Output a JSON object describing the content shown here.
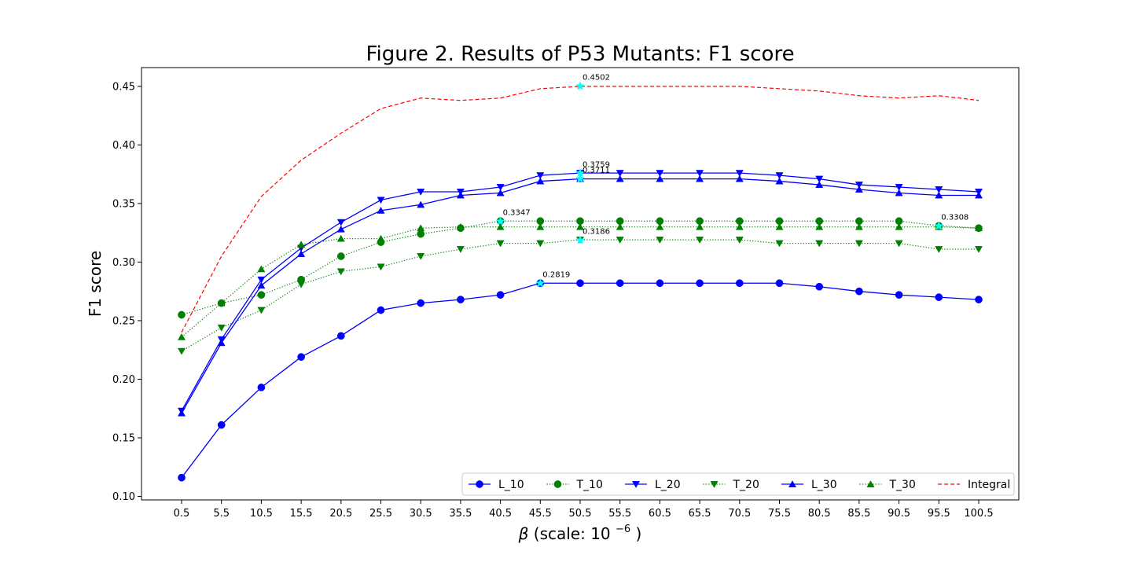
{
  "chart_data": {
    "type": "line",
    "title": "Figure 2. Results of P53 Mutants: F1 score",
    "xlabel_symbol": "β",
    "xlabel_text": " (scale: 10",
    "xlabel_exp": "−6",
    "xlabel_close": ")",
    "ylabel": "F1 score",
    "x": [
      0.5,
      5.5,
      10.5,
      15.5,
      20.5,
      25.5,
      30.5,
      35.5,
      40.5,
      45.5,
      50.5,
      55.5,
      60.5,
      65.5,
      70.5,
      75.5,
      80.5,
      85.5,
      90.5,
      95.5,
      100.5
    ],
    "x_tick_labels": [
      "0.5",
      "5.5",
      "10.5",
      "15.5",
      "20.5",
      "25.5",
      "30.5",
      "35.5",
      "40.5",
      "45.5",
      "50.5",
      "55.5",
      "60.5",
      "65.5",
      "70.5",
      "75.5",
      "80.5",
      "85.5",
      "90.5",
      "95.5",
      "100.5"
    ],
    "ylim": [
      0.097,
      0.466
    ],
    "y_ticks": [
      0.1,
      0.15,
      0.2,
      0.25,
      0.3,
      0.35,
      0.4,
      0.45
    ],
    "y_tick_labels": [
      "0.10",
      "0.15",
      "0.20",
      "0.25",
      "0.30",
      "0.35",
      "0.40",
      "0.45"
    ],
    "grid": false,
    "legend_position": "lower-right",
    "series": [
      {
        "name": "L_10",
        "color": "#0000ff",
        "linestyle": "solid",
        "marker": "circle",
        "values": [
          0.116,
          0.161,
          0.193,
          0.219,
          0.237,
          0.259,
          0.265,
          0.268,
          0.272,
          0.282,
          0.282,
          0.282,
          0.282,
          0.282,
          0.282,
          0.282,
          0.279,
          0.275,
          0.272,
          0.27,
          0.268
        ]
      },
      {
        "name": "T_10",
        "color": "#008000",
        "linestyle": "dotted",
        "marker": "circle",
        "values": [
          0.255,
          0.265,
          0.272,
          0.285,
          0.305,
          0.317,
          0.324,
          0.329,
          0.335,
          0.335,
          0.335,
          0.335,
          0.335,
          0.335,
          0.335,
          0.335,
          0.335,
          0.335,
          0.335,
          0.331,
          0.329
        ]
      },
      {
        "name": "L_20",
        "color": "#0000ff",
        "linestyle": "solid",
        "marker": "triangle-down",
        "values": [
          0.173,
          0.234,
          0.285,
          0.312,
          0.334,
          0.353,
          0.36,
          0.36,
          0.364,
          0.374,
          0.376,
          0.376,
          0.376,
          0.376,
          0.376,
          0.374,
          0.371,
          0.366,
          0.364,
          0.362,
          0.36
        ]
      },
      {
        "name": "T_20",
        "color": "#008000",
        "linestyle": "dotted",
        "marker": "triangle-down",
        "values": [
          0.224,
          0.244,
          0.259,
          0.281,
          0.292,
          0.296,
          0.305,
          0.311,
          0.316,
          0.316,
          0.319,
          0.319,
          0.319,
          0.319,
          0.319,
          0.316,
          0.316,
          0.316,
          0.316,
          0.311,
          0.311
        ]
      },
      {
        "name": "L_30",
        "color": "#0000ff",
        "linestyle": "solid",
        "marker": "triangle-up",
        "values": [
          0.171,
          0.231,
          0.28,
          0.307,
          0.328,
          0.344,
          0.349,
          0.357,
          0.359,
          0.369,
          0.371,
          0.371,
          0.371,
          0.371,
          0.371,
          0.369,
          0.366,
          0.362,
          0.359,
          0.357,
          0.357
        ]
      },
      {
        "name": "T_30",
        "color": "#008000",
        "linestyle": "dotted",
        "marker": "triangle-up",
        "values": [
          0.236,
          0.265,
          0.294,
          0.315,
          0.32,
          0.32,
          0.329,
          0.33,
          0.33,
          0.33,
          0.33,
          0.33,
          0.33,
          0.33,
          0.33,
          0.33,
          0.33,
          0.33,
          0.33,
          0.33,
          0.329
        ]
      },
      {
        "name": "Integral",
        "color": "#ff0000",
        "linestyle": "dashed",
        "marker": "none",
        "values": [
          0.24,
          0.305,
          0.356,
          0.387,
          0.41,
          0.431,
          0.44,
          0.438,
          0.44,
          0.448,
          0.45,
          0.45,
          0.45,
          0.45,
          0.45,
          0.448,
          0.446,
          0.442,
          0.44,
          0.442,
          0.438
        ]
      }
    ],
    "annotations": [
      {
        "x": 50.5,
        "y": 0.4502,
        "text": "0.4502",
        "marker_color": "#00ffff"
      },
      {
        "x": 50.5,
        "y": 0.3759,
        "text": "0.3759",
        "marker_color": "#00ffff"
      },
      {
        "x": 50.5,
        "y": 0.3711,
        "text": "0.3711",
        "marker_color": "#00ffff"
      },
      {
        "x": 40.5,
        "y": 0.3347,
        "text": "0.3347",
        "marker_color": "#00ffff"
      },
      {
        "x": 95.5,
        "y": 0.3308,
        "text": "0.3308",
        "marker_color": "#00ffff"
      },
      {
        "x": 50.5,
        "y": 0.3186,
        "text": "0.3186",
        "marker_color": "#00ffff"
      },
      {
        "x": 45.5,
        "y": 0.2819,
        "text": "0.2819",
        "marker_color": "#00ffff"
      }
    ]
  }
}
